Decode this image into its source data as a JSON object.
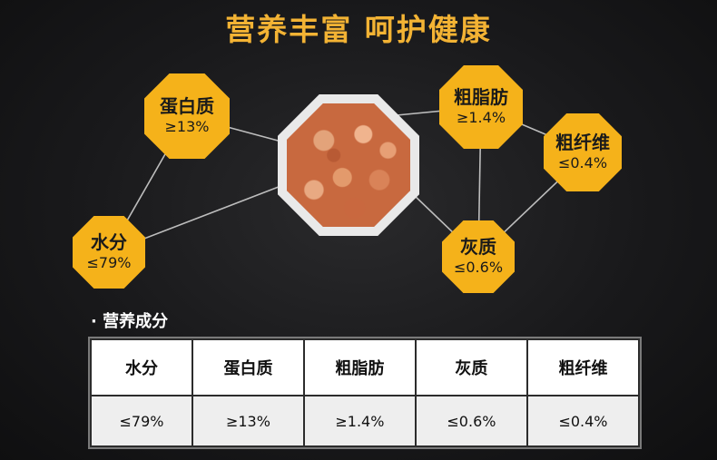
{
  "title": "营养丰富  呵护健康",
  "nutrients": [
    {
      "name": "水分",
      "value": "≤79%"
    },
    {
      "name": "蛋白质",
      "value": "≥13%"
    },
    {
      "name": "粗脂肪",
      "value": "≥1.4%"
    },
    {
      "name": "灰质",
      "value": "≤0.6%"
    },
    {
      "name": "粗纤维",
      "value": "≤0.4%"
    }
  ],
  "section_label": "· 营养成分",
  "table": {
    "headers": [
      "水分",
      "蛋白质",
      "粗脂肪",
      "灰质",
      "粗纤维"
    ],
    "values": [
      "≤79%",
      "≥13%",
      "≥1.4%",
      "≤0.6%",
      "≤0.4%"
    ]
  },
  "colors": {
    "accent": "#f5b21a",
    "title": "#f3b334"
  },
  "center_image": "food-closeup"
}
